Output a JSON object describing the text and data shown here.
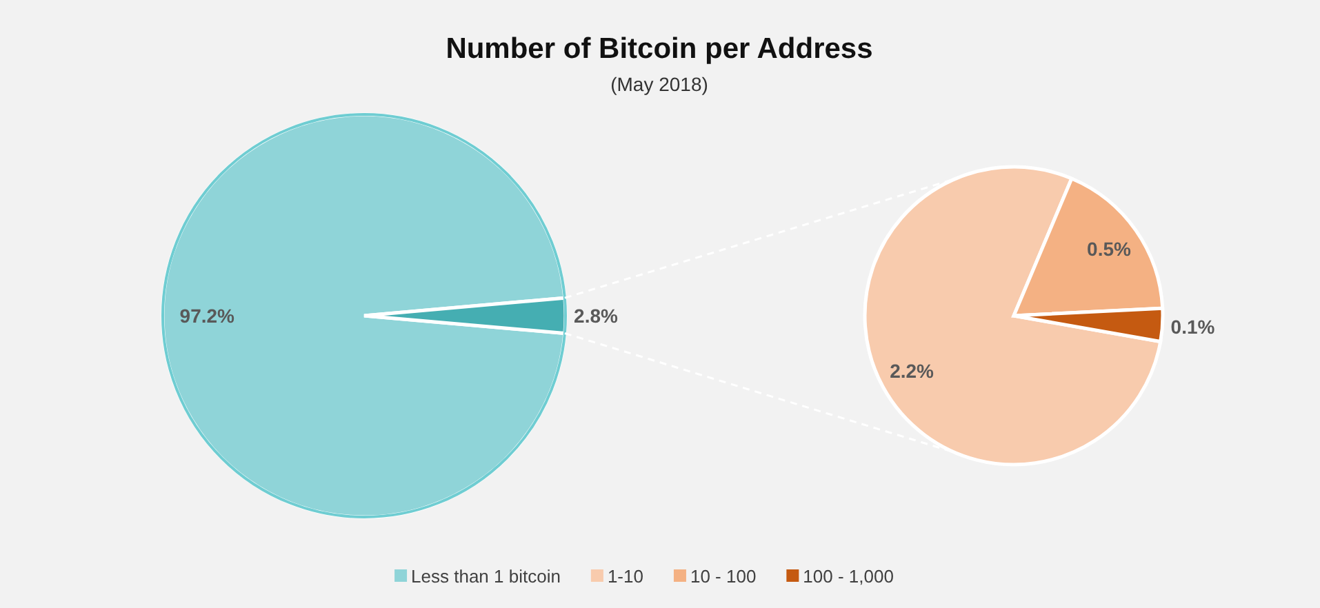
{
  "chart_data": [
    {
      "type": "pie",
      "title": "Number of Bitcoin per Address",
      "subtitle": "(May 2018)",
      "categories": [
        "Less than 1 bitcoin",
        null
      ],
      "values": [
        97.2,
        2.8
      ],
      "colors": [
        "#8fd4d8",
        "#45aeb2"
      ],
      "value_labels": [
        "97.2%",
        "2.8%"
      ],
      "legend": "bottom"
    },
    {
      "type": "pie",
      "categories": [
        "1-10",
        "10 - 100",
        "100 - 1,000"
      ],
      "values": [
        2.2,
        0.5,
        0.1
      ],
      "colors": [
        "#f8cbad",
        "#f4b183",
        "#c55a11"
      ],
      "value_labels": [
        "2.2%",
        "0.5%",
        "0.1%"
      ],
      "legend": "bottom"
    }
  ]
}
